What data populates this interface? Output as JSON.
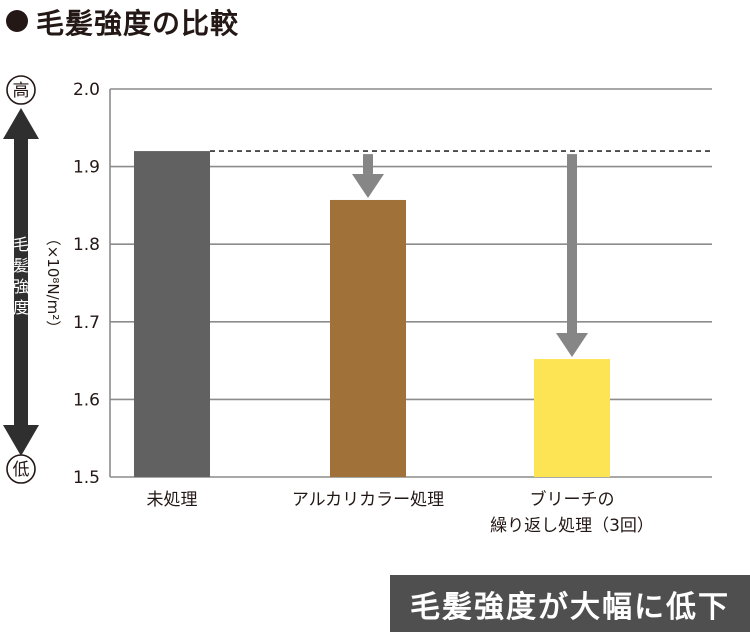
{
  "title": "毛髪強度の比較",
  "callout": "毛髪強度が大幅に低下",
  "scale": {
    "high_label": "高",
    "low_label": "低",
    "ylabel_chars": [
      "毛",
      "髪",
      "強",
      "度"
    ],
    "unit": "（×10⁸N/m²）"
  },
  "chart_data": {
    "type": "bar",
    "categories": [
      [
        "未処理"
      ],
      [
        "アルカリカラー処理"
      ],
      [
        "ブリーチの",
        "繰り返し処理（3回）"
      ]
    ],
    "values": [
      1.92,
      1.857,
      1.652
    ],
    "colors": [
      "#616161",
      "#a0723a",
      "#fde454"
    ],
    "ylim": [
      1.5,
      2.0
    ],
    "yticks": [
      1.5,
      1.6,
      1.7,
      1.8,
      1.9,
      2.0
    ],
    "reference_line": 1.92,
    "grid": true
  }
}
